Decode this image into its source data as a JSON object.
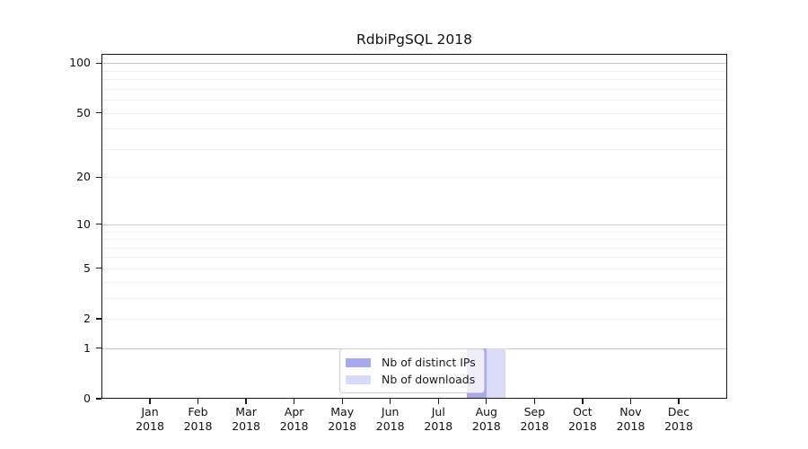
{
  "chart_data": {
    "type": "bar",
    "title": "RdbiPgSQL 2018",
    "xlabel": "",
    "ylabel": "",
    "x_year": "2018",
    "categories": [
      "Jan",
      "Feb",
      "Mar",
      "Apr",
      "May",
      "Jun",
      "Jul",
      "Aug",
      "Sep",
      "Oct",
      "Nov",
      "Dec"
    ],
    "series": [
      {
        "name": "Nb of distinct IPs",
        "color": "#a8a8ec",
        "values": [
          0,
          0,
          0,
          0,
          0,
          0,
          0,
          1,
          0,
          0,
          0,
          0
        ]
      },
      {
        "name": "Nb of downloads",
        "color": "#d9d9f8",
        "values": [
          0,
          0,
          0,
          0,
          0,
          0,
          0,
          1,
          0,
          0,
          0,
          0
        ]
      }
    ],
    "yscale": "log1p",
    "ylim": [
      0,
      113.5
    ],
    "yticks": [
      0,
      1,
      2,
      5,
      10,
      20,
      50,
      100
    ],
    "major_gridlines": [
      1,
      10,
      100
    ],
    "minor_gridlines": [
      2,
      3,
      4,
      5,
      6,
      7,
      8,
      9,
      20,
      30,
      40,
      50,
      60,
      70,
      80,
      90
    ],
    "grid": true,
    "legend_position": "inside-bottom-center"
  },
  "colors": {
    "axis": "#1a1a1a",
    "major_grid": "#c9c9c9",
    "minor_grid": "#eeeeee",
    "background": "#ffffff"
  }
}
